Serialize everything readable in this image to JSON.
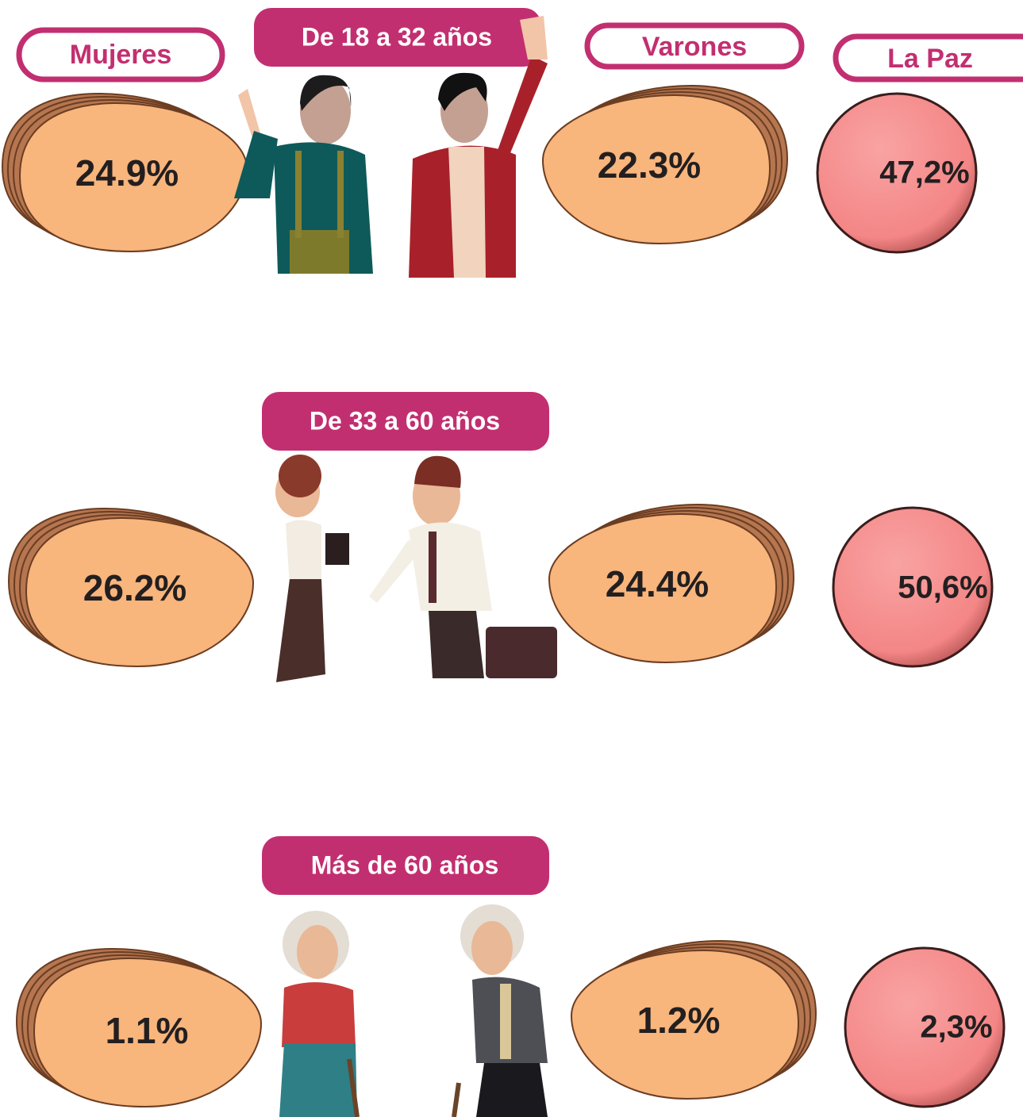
{
  "columns": {
    "women": "Mujeres",
    "men": "Varones",
    "region": "La Paz"
  },
  "groups": [
    {
      "label": "De 18 a 32 años",
      "women": "24.9%",
      "men": "22.3%",
      "region": "47,2%"
    },
    {
      "label": "De 33 a 60 años",
      "women": "26.2%",
      "men": "24.4%",
      "region": "50,6%"
    },
    {
      "label": "Más de 60 años",
      "women": "1.1%",
      "men": "1.2%",
      "region": "2,3%"
    }
  ]
}
